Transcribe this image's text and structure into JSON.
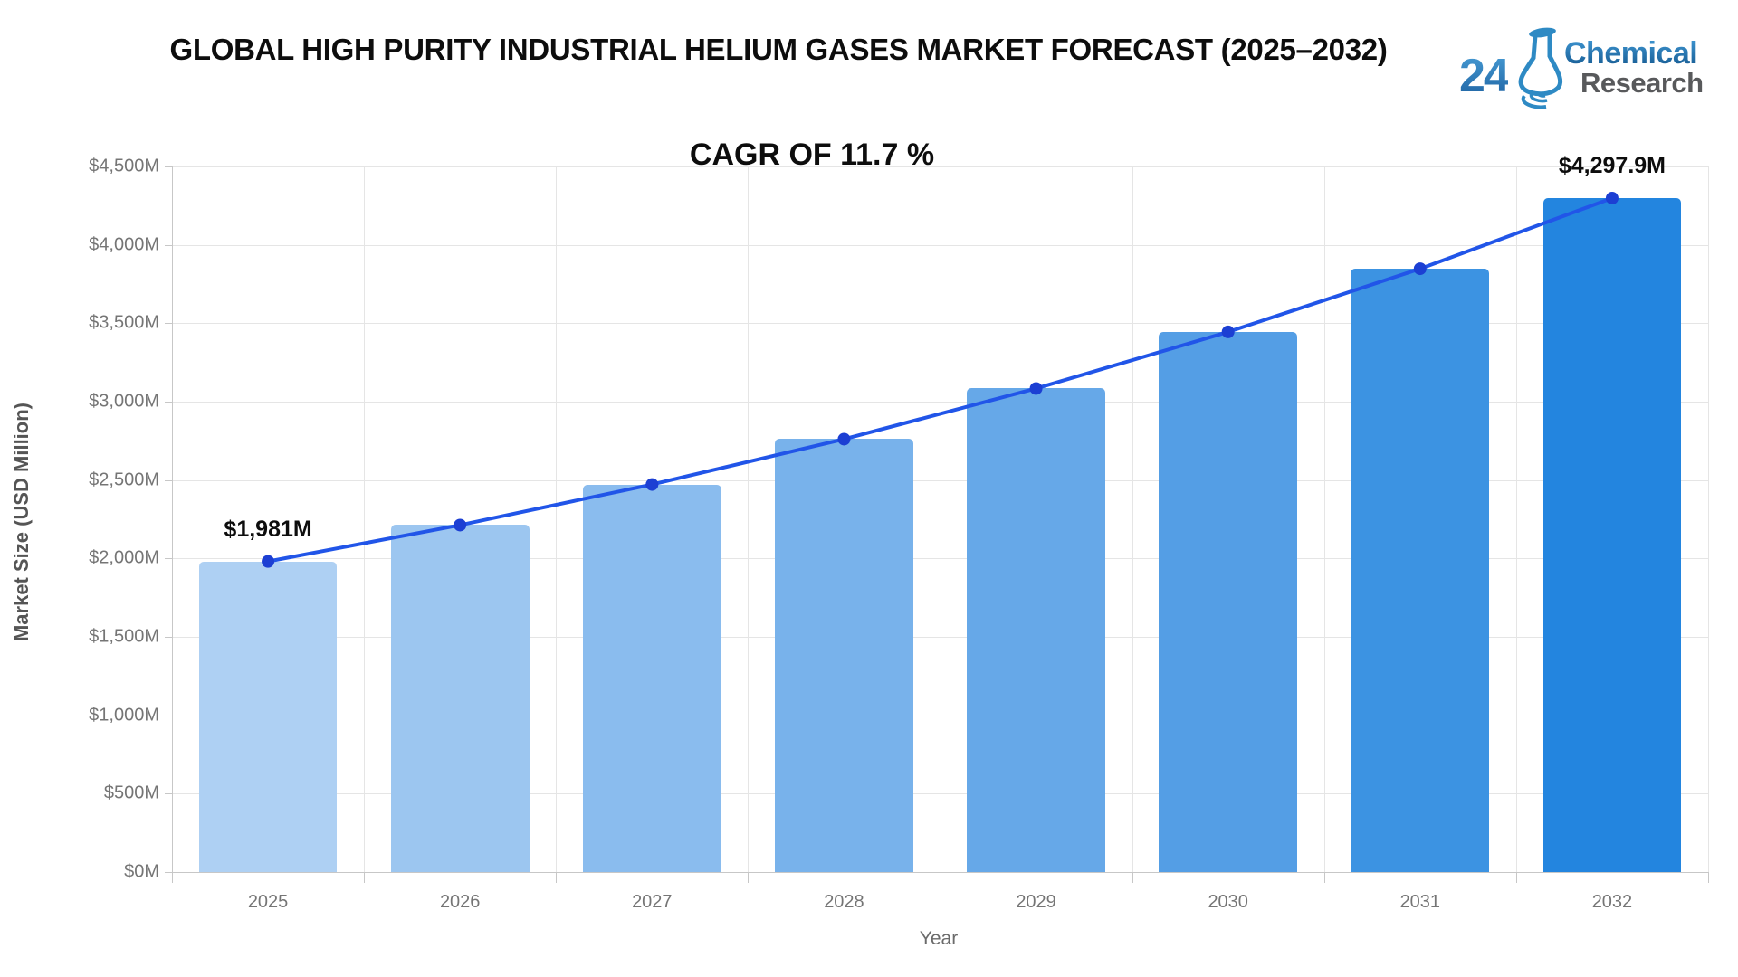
{
  "header": {
    "title": "GLOBAL HIGH PURITY INDUSTRIAL HELIUM GASES MARKET FORECAST (2025–2032)"
  },
  "logo": {
    "number": "24",
    "chemical": "Chemical",
    "research": "Research",
    "flask_color": "#2e8ac4"
  },
  "chart_data": {
    "type": "bar",
    "annotation": "CAGR OF 11.7 %",
    "categories": [
      "2025",
      "2026",
      "2027",
      "2028",
      "2029",
      "2030",
      "2031",
      "2032"
    ],
    "series": [
      {
        "name": "Market Size (USD Million)",
        "type": "bar",
        "values": [
          1981,
          2212.8,
          2471.7,
          2760.9,
          3083.9,
          3444.7,
          3847.7,
          4297.9
        ]
      },
      {
        "name": "Trend line",
        "type": "line",
        "values": [
          1981,
          2212.8,
          2471.7,
          2760.9,
          3083.9,
          3444.7,
          3847.7,
          4297.9
        ]
      }
    ],
    "bar_colors": [
      "#aed0f3",
      "#9cc6f0",
      "#8abcee",
      "#78b2eb",
      "#66a8e8",
      "#549ee5",
      "#3c93e2",
      "#2385df"
    ],
    "line_color": "#2155e8",
    "marker_color": "#1c3fd3",
    "xlabel": "Year",
    "ylabel": "Market Size (USD Million)",
    "ylim": [
      0,
      4500
    ],
    "ytick_step": 500,
    "ytick_labels": [
      "$0M",
      "$500M",
      "$1,000M",
      "$1,500M",
      "$2,000M",
      "$2,500M",
      "$3,000M",
      "$3,500M",
      "$4,000M",
      "$4,500M"
    ],
    "grid": true,
    "legend": "none",
    "data_labels": [
      {
        "index": 0,
        "text": "$1,981M"
      },
      {
        "index": 7,
        "text": "$4,297.9M"
      }
    ]
  }
}
